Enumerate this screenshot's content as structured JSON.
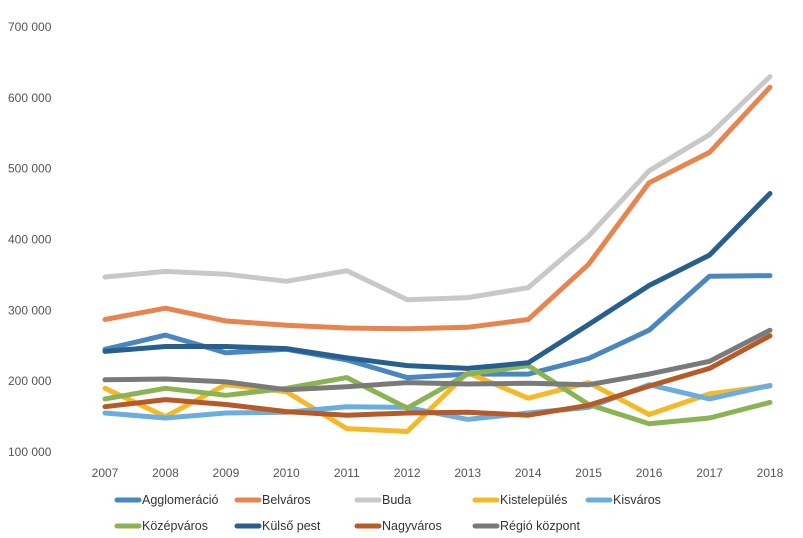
{
  "chart_data": {
    "type": "line",
    "title": "",
    "xlabel": "",
    "ylabel": "",
    "ylim": [
      100000,
      700000
    ],
    "yticks": [
      100000,
      200000,
      300000,
      400000,
      500000,
      600000,
      700000
    ],
    "ytick_labels": [
      "100 000",
      "200 000",
      "300 000",
      "400 000",
      "500 000",
      "600 000",
      "700 000"
    ],
    "grid": false,
    "legend_position": "bottom",
    "categories": [
      "2007",
      "2008",
      "2009",
      "2010",
      "2011",
      "2012",
      "2013",
      "2014",
      "2015",
      "2016",
      "2017",
      "2018"
    ],
    "series": [
      {
        "name": "Agglomeráció",
        "color": "#4a86bf",
        "values": [
          245000,
          265000,
          240000,
          245000,
          230000,
          205000,
          210000,
          210000,
          232000,
          272000,
          348000,
          349000
        ]
      },
      {
        "name": "Belváros",
        "color": "#e8844f",
        "values": [
          287000,
          303000,
          285000,
          279000,
          275000,
          274000,
          276000,
          287000,
          365000,
          480000,
          523000,
          615000
        ]
      },
      {
        "name": "Buda",
        "color": "#c8c8c8",
        "values": [
          347000,
          355000,
          351000,
          341000,
          356000,
          315000,
          318000,
          332000,
          405000,
          497000,
          548000,
          630000
        ]
      },
      {
        "name": "Kistelepülés",
        "color": "#f5b928",
        "values": [
          190000,
          150000,
          195000,
          185000,
          133000,
          129000,
          212000,
          176000,
          198000,
          153000,
          182000,
          193000
        ]
      },
      {
        "name": "Kisváros",
        "color": "#6aaee0",
        "values": [
          155000,
          148000,
          155000,
          156000,
          164000,
          163000,
          146000,
          155000,
          163000,
          195000,
          175000,
          194000
        ]
      },
      {
        "name": "Középváros",
        "color": "#8ab454",
        "values": [
          175000,
          190000,
          180000,
          190000,
          205000,
          162000,
          210000,
          222000,
          167000,
          140000,
          148000,
          170000
        ]
      },
      {
        "name": "Külső pest",
        "color": "#275f8f",
        "values": [
          242000,
          249000,
          249000,
          246000,
          233000,
          222000,
          218000,
          226000,
          280000,
          335000,
          378000,
          465000
        ]
      },
      {
        "name": "Nagyváros",
        "color": "#b85a28",
        "values": [
          164000,
          174000,
          167000,
          157000,
          152000,
          155000,
          156000,
          152000,
          166000,
          193000,
          218000,
          264000
        ]
      },
      {
        "name": "Régió központ",
        "color": "#7a7a7a",
        "values": [
          202000,
          203000,
          199000,
          188000,
          192000,
          198000,
          196000,
          197000,
          195000,
          210000,
          228000,
          272000
        ]
      }
    ]
  }
}
